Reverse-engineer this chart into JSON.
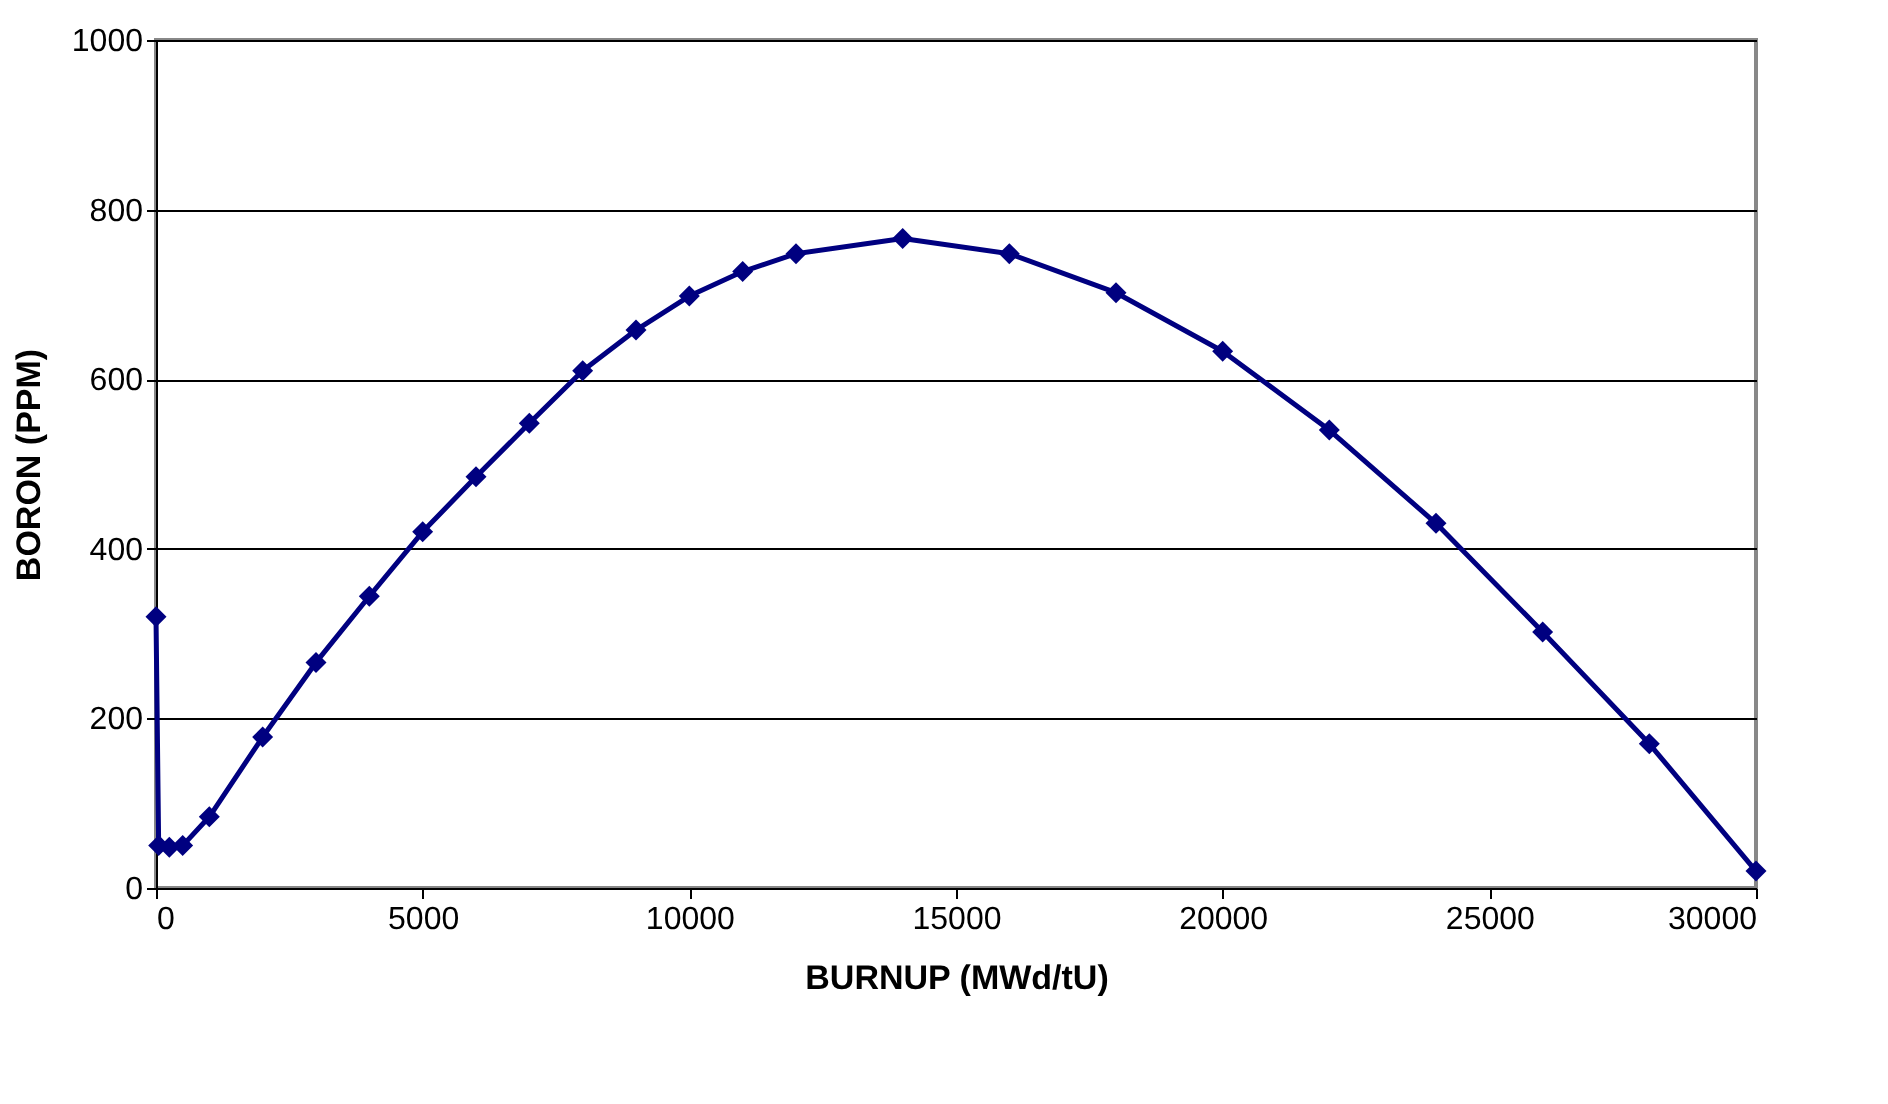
{
  "chart_data": {
    "type": "line",
    "xlabel": "BURNUP  (MWd/tU)",
    "ylabel": "BORON (PPM)",
    "x": [
      0,
      50,
      250,
      500,
      1000,
      2000,
      3000,
      4000,
      5000,
      6000,
      7000,
      8000,
      9000,
      10000,
      11000,
      12000,
      14000,
      16000,
      18000,
      20000,
      22000,
      24000,
      26000,
      28000,
      30000
    ],
    "series": [
      {
        "color": "#000080",
        "values": [
          320,
          50,
          48,
          50,
          84,
          178,
          266,
          344,
          420,
          485,
          548,
          610,
          658,
          698,
          727,
          748,
          766,
          748,
          702,
          633,
          540,
          430,
          302,
          170,
          20
        ]
      }
    ],
    "xlim": [
      0,
      30000
    ],
    "xticks": [
      0,
      5000,
      10000,
      15000,
      20000,
      25000,
      30000
    ],
    "ylim": [
      0,
      1000
    ],
    "yticks": [
      0,
      200,
      400,
      600,
      800,
      1000
    ],
    "grid": "y",
    "legend": false,
    "marker": "diamond",
    "line_style": "solid"
  }
}
